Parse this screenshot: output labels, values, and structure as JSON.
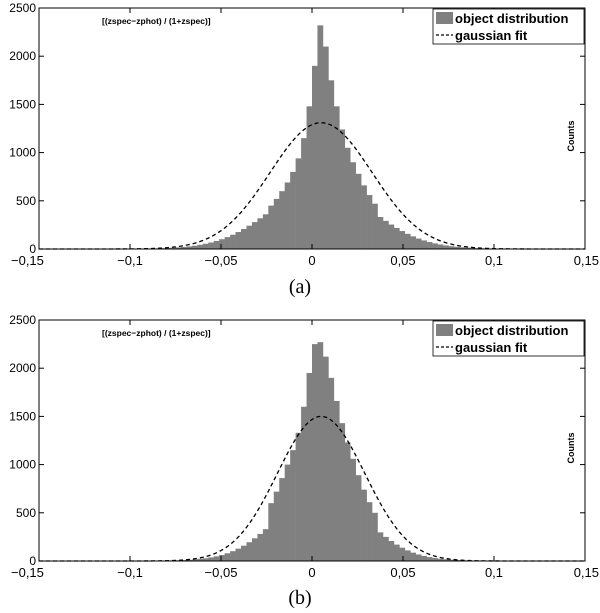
{
  "chart_data": [
    {
      "type": "bar",
      "caption": "(a)",
      "annotation": "[(zspec−zphot) / (1+zspec)]",
      "ylabel": "Counts",
      "xlabel": "",
      "xlim": [
        -0.15,
        0.15
      ],
      "ylim": [
        0,
        2500
      ],
      "bin_width": 0.003,
      "x_ticks": [
        -0.15,
        -0.1,
        -0.05,
        0,
        0.05,
        0.1,
        0.15
      ],
      "x_tick_labels": [
        "−0,15",
        "−0,1",
        "−0,05",
        "0",
        "0,05",
        "0,1",
        "0,15"
      ],
      "y_ticks": [
        0,
        500,
        1000,
        1500,
        2000,
        2500
      ],
      "y_tick_labels": [
        "0",
        "500",
        "1000",
        "1500",
        "2000",
        "2500"
      ],
      "legend_position": "top-right",
      "series": [
        {
          "name": "object distribution",
          "kind": "histogram",
          "color": "#808080",
          "bins": [
            {
              "x": -0.0225,
              "y": 450
            },
            {
              "x": -0.0195,
              "y": 520
            },
            {
              "x": -0.0165,
              "y": 600
            },
            {
              "x": -0.0135,
              "y": 690
            },
            {
              "x": -0.0105,
              "y": 800
            },
            {
              "x": -0.0075,
              "y": 940
            },
            {
              "x": -0.0045,
              "y": 1150
            },
            {
              "x": -0.0015,
              "y": 1480
            },
            {
              "x": 0.0015,
              "y": 1900
            },
            {
              "x": 0.0045,
              "y": 2320
            },
            {
              "x": 0.0075,
              "y": 2100
            },
            {
              "x": 0.0105,
              "y": 1750
            },
            {
              "x": 0.0135,
              "y": 1480
            },
            {
              "x": 0.0165,
              "y": 1240
            },
            {
              "x": 0.0195,
              "y": 1050
            },
            {
              "x": 0.0225,
              "y": 900
            },
            {
              "x": 0.0255,
              "y": 780
            },
            {
              "x": 0.0285,
              "y": 660
            },
            {
              "x": 0.0315,
              "y": 560
            },
            {
              "x": 0.0345,
              "y": 470
            }
          ],
          "tail_scale": 0.04
        },
        {
          "name": "gaussian fit",
          "kind": "curve",
          "color": "#000000",
          "dash": "dashed",
          "amplitude": 1310,
          "mean": 0.005,
          "sigma": 0.028
        }
      ]
    },
    {
      "type": "bar",
      "caption": "(b)",
      "annotation": "[(zspec−zphot) / (1+zspec)]",
      "ylabel": "Counts",
      "xlabel": "",
      "xlim": [
        -0.15,
        0.15
      ],
      "ylim": [
        0,
        2500
      ],
      "bin_width": 0.003,
      "x_ticks": [
        -0.15,
        -0.1,
        -0.05,
        0,
        0.05,
        0.1,
        0.15
      ],
      "x_tick_labels": [
        "−0,15",
        "−0,1",
        "−0,05",
        "0",
        "0,05",
        "0,1",
        "0,15"
      ],
      "y_ticks": [
        0,
        500,
        1000,
        1500,
        2000,
        2500
      ],
      "y_tick_labels": [
        "0",
        "500",
        "1000",
        "1500",
        "2000",
        "2500"
      ],
      "legend_position": "top-right",
      "series": [
        {
          "name": "object distribution",
          "kind": "histogram",
          "color": "#808080",
          "bins": [
            {
              "x": -0.0225,
              "y": 600
            },
            {
              "x": -0.0195,
              "y": 720
            },
            {
              "x": -0.0165,
              "y": 860
            },
            {
              "x": -0.0135,
              "y": 1000
            },
            {
              "x": -0.0105,
              "y": 1150
            },
            {
              "x": -0.0075,
              "y": 1330
            },
            {
              "x": -0.0045,
              "y": 1600
            },
            {
              "x": -0.0015,
              "y": 1950
            },
            {
              "x": 0.0015,
              "y": 2250
            },
            {
              "x": 0.0045,
              "y": 2270
            },
            {
              "x": 0.0075,
              "y": 2120
            },
            {
              "x": 0.0105,
              "y": 1900
            },
            {
              "x": 0.0135,
              "y": 1660
            },
            {
              "x": 0.0165,
              "y": 1430
            },
            {
              "x": 0.0195,
              "y": 1230
            },
            {
              "x": 0.0225,
              "y": 1060
            },
            {
              "x": 0.0255,
              "y": 890
            },
            {
              "x": 0.0285,
              "y": 740
            },
            {
              "x": 0.0315,
              "y": 610
            },
            {
              "x": 0.0345,
              "y": 500
            }
          ],
          "tail_scale": 0.03
        },
        {
          "name": "gaussian fit",
          "kind": "curve",
          "color": "#000000",
          "dash": "dashed",
          "amplitude": 1500,
          "mean": 0.005,
          "sigma": 0.024
        }
      ]
    }
  ]
}
